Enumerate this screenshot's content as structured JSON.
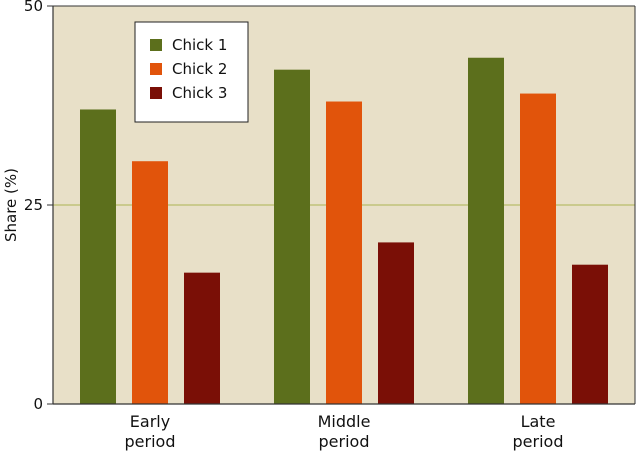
{
  "chart_data": {
    "type": "bar",
    "title": "",
    "xlabel": "",
    "ylabel": "Share (%)",
    "ylim": [
      0,
      50
    ],
    "yticks": [
      0,
      25,
      50
    ],
    "grid": true,
    "legend_position": "top-left",
    "categories": [
      [
        "Early",
        "period"
      ],
      [
        "Middle",
        "period"
      ],
      [
        "Late",
        "period"
      ]
    ],
    "series": [
      {
        "name": "Chick 1",
        "color": "#5c6f1c",
        "values": [
          37,
          42,
          43.5
        ]
      },
      {
        "name": "Chick 2",
        "color": "#e1540b",
        "values": [
          30.5,
          38,
          39
        ]
      },
      {
        "name": "Chick 3",
        "color": "#7a0f06",
        "values": [
          16.5,
          20.3,
          17.5
        ]
      }
    ],
    "colors": {
      "background": "#e8e0c8",
      "gridline": "#b9bc6a",
      "axis": "#333333"
    }
  }
}
